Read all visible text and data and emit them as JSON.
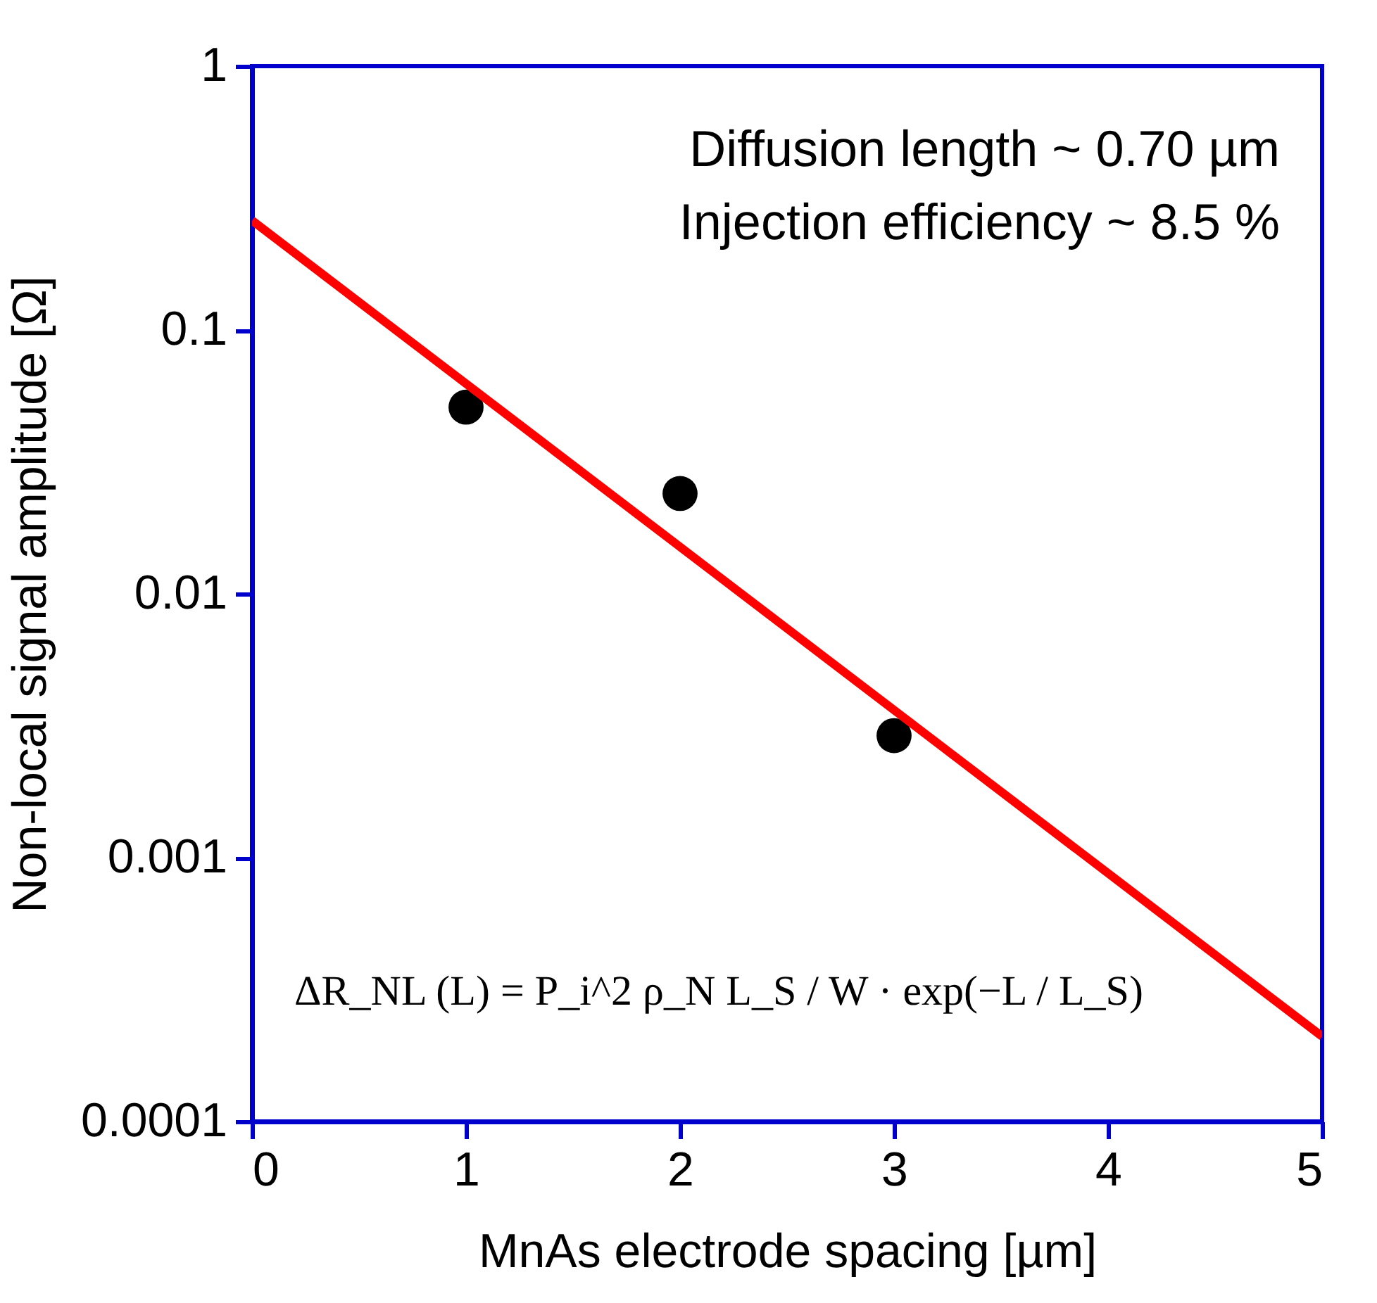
{
  "chart_data": {
    "type": "scatter",
    "xlabel": "MnAs electrode spacing [µm]",
    "ylabel": "Non-local signal amplitude [Ω]",
    "x": [
      1,
      2,
      3
    ],
    "series": [
      {
        "type": "scatter",
        "color": "#000000",
        "marker": "circle",
        "values": [
          0.051,
          0.024,
          0.0029
        ]
      },
      {
        "type": "line",
        "color": "#ff0000",
        "x": [
          0,
          5
        ],
        "values": [
          0.26,
          0.00021
        ],
        "line_style": "solid"
      }
    ],
    "xlim": [
      0,
      5
    ],
    "xticks": [
      0,
      1,
      2,
      3,
      4,
      5
    ],
    "ylim": [
      0.0001,
      1
    ],
    "yticks": [
      0.0001,
      0.001,
      0.01,
      0.1,
      1
    ],
    "log": "y",
    "grid": false,
    "legend": false,
    "annotations": [
      "Diffusion length ~ 0.70 µm",
      "Injection efficiency ~ 8.5 %",
      "ΔR_NL (L) = P_i^2 ρ_N L_S / W · exp(−L / L_S)"
    ]
  }
}
